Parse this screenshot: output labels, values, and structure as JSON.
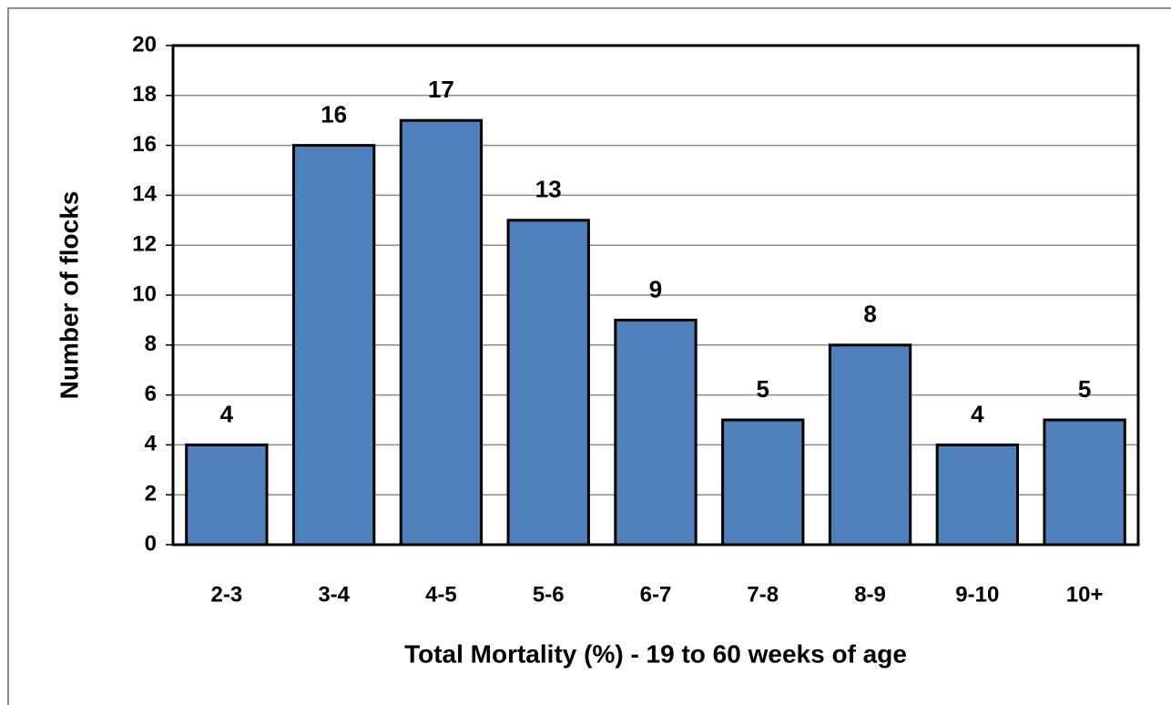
{
  "chart_data": {
    "type": "bar",
    "categories": [
      "2-3",
      "3-4",
      "4-5",
      "5-6",
      "6-7",
      "7-8",
      "8-9",
      "9-10",
      "10+"
    ],
    "values": [
      4,
      16,
      17,
      13,
      9,
      5,
      8,
      4,
      5
    ],
    "color": "#4f81bd",
    "xlabel": "Total Mortality (%) - 19 to 60 weeks of age",
    "ylabel": "Number of flocks",
    "ylim": [
      0,
      20
    ],
    "yticks": [
      0,
      2,
      4,
      6,
      8,
      10,
      12,
      14,
      16,
      18,
      20
    ],
    "grid": true
  }
}
